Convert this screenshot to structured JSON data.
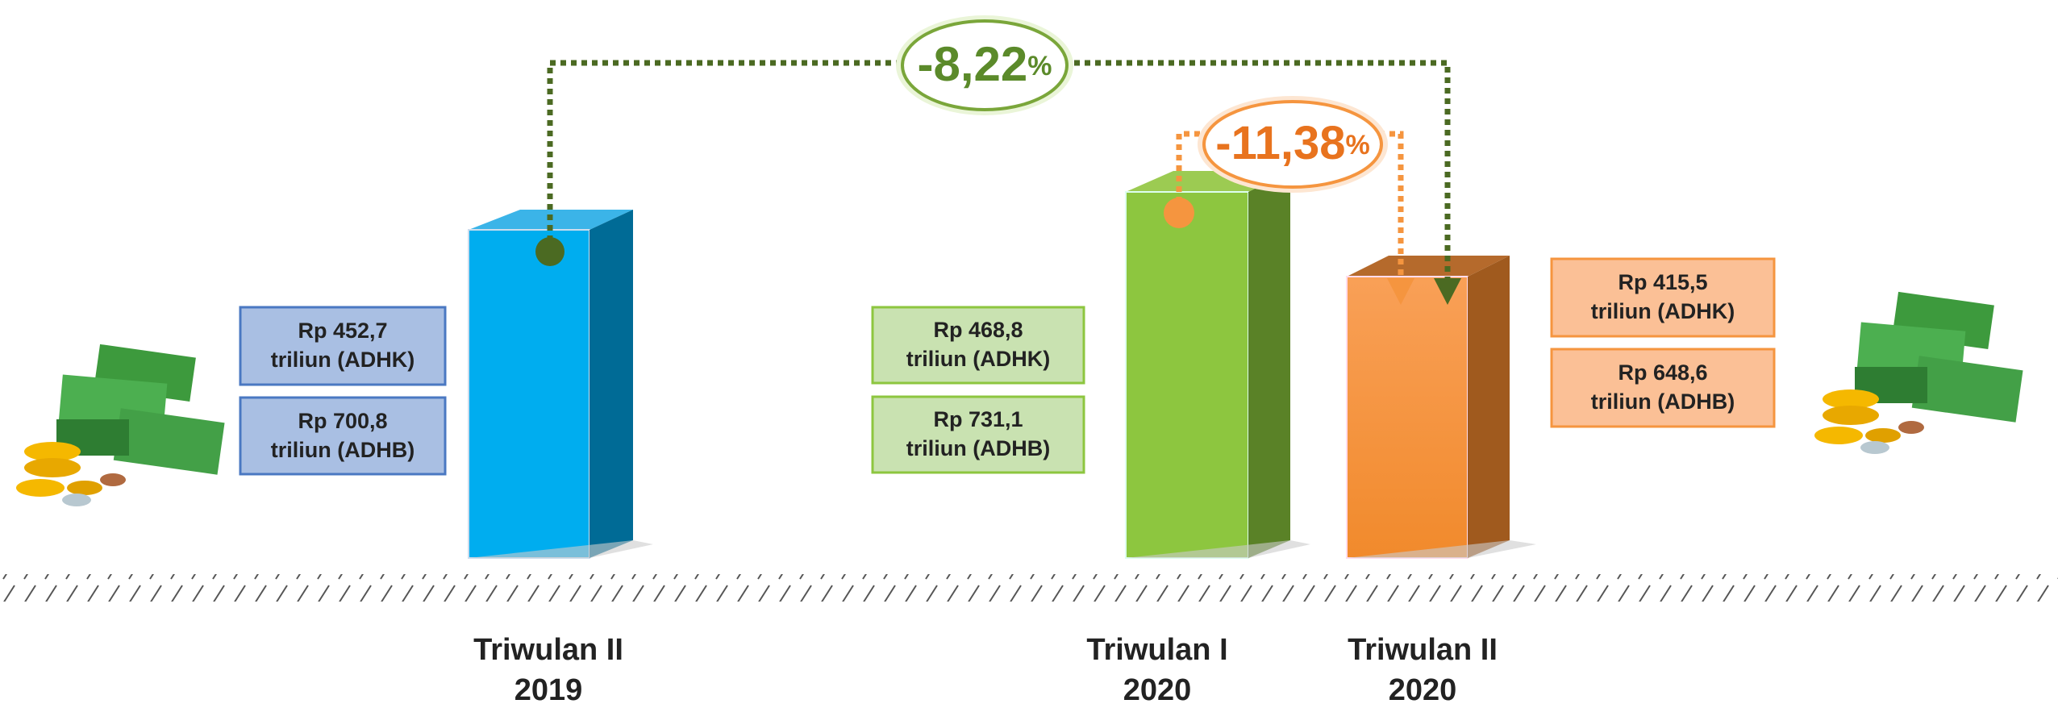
{
  "periods": [
    {
      "quarter": "Triwulan II",
      "year": "2019",
      "adhk": [
        "Rp 452,7",
        "triliun (ADHK)"
      ],
      "adhb": [
        "Rp 700,8",
        "triliun (ADHB)"
      ]
    },
    {
      "quarter": "Triwulan I",
      "year": "2020",
      "adhk": [
        "Rp 468,8",
        "triliun (ADHK)"
      ],
      "adhb": [
        "Rp 731,1",
        "triliun (ADHB)"
      ]
    },
    {
      "quarter": "Triwulan II",
      "year": "2020",
      "adhk": [
        "Rp 415,5",
        "triliun (ADHK)"
      ],
      "adhb": [
        "Rp 648,6",
        "triliun (ADHB)"
      ]
    }
  ],
  "growth": [
    {
      "value": "-8,22",
      "unit": "%"
    },
    {
      "value": "-11,38",
      "unit": "%"
    }
  ]
}
